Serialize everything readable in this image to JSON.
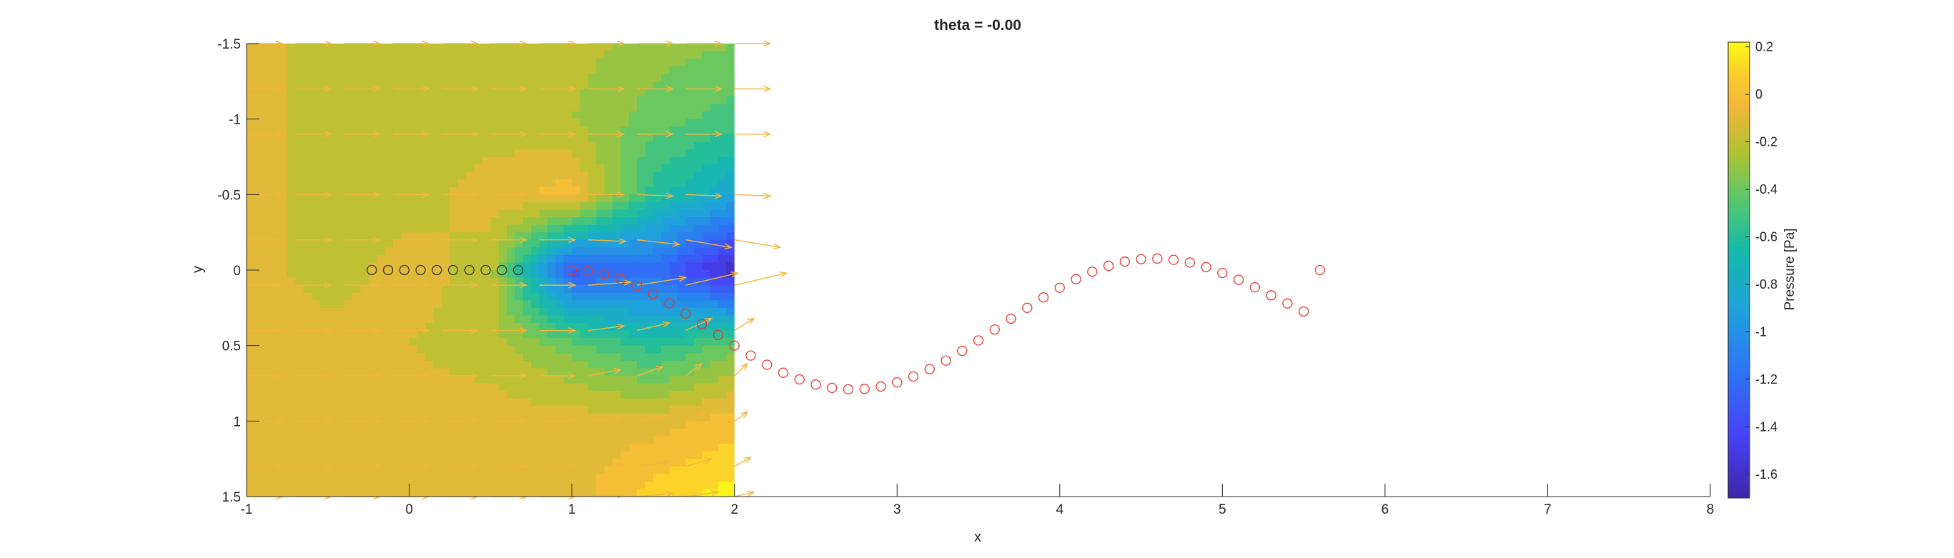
{
  "chart_data": {
    "type": "contour",
    "title": "theta = -0.00",
    "xlabel": "x",
    "ylabel": "y",
    "xlim": [
      -1,
      8
    ],
    "ylim": [
      -1.5,
      1.5
    ],
    "y_reversed": true,
    "x_ticks": [
      -1,
      0,
      1,
      2,
      3,
      4,
      5,
      6,
      7,
      8
    ],
    "x_tick_labels": [
      "-1",
      "0",
      "1",
      "2",
      "3",
      "4",
      "5",
      "6",
      "7",
      "8"
    ],
    "y_ticks": [
      -1.5,
      -1,
      -0.5,
      0,
      0.5,
      1,
      1.5
    ],
    "y_tick_labels": [
      "-1.5",
      "-1",
      "-0.5",
      "0",
      "0.5",
      "1",
      "1.5"
    ],
    "grid": false,
    "field_domain": {
      "x": [
        -1,
        2
      ],
      "y": [
        -1.5,
        1.5
      ]
    },
    "colorbar": {
      "label": "Pressure [Pa]",
      "limits": [
        -1.7,
        0.22
      ],
      "ticks": [
        0.2,
        0,
        -0.2,
        -0.4,
        -0.6,
        -0.8,
        -1,
        -1.2,
        -1.4,
        -1.6
      ],
      "tick_labels": [
        "0.2",
        "0",
        "-0.2",
        "-0.4",
        "-0.6",
        "-0.8",
        "-1",
        "-1.2",
        "-1.4",
        "-1.6"
      ],
      "colormap": "parula"
    },
    "pressure_field": {
      "x": [
        -1.0,
        -0.5,
        0.0,
        0.5,
        1.0,
        1.5,
        2.0
      ],
      "y": [
        -1.5,
        -1.0,
        -0.5,
        0.0,
        0.5,
        1.0,
        1.5
      ],
      "p": [
        [
          -0.1,
          -0.2,
          -0.2,
          -0.2,
          -0.2,
          -0.3,
          -0.35
        ],
        [
          -0.1,
          -0.2,
          -0.2,
          -0.2,
          -0.25,
          -0.4,
          -0.5
        ],
        [
          -0.1,
          -0.2,
          -0.2,
          -0.1,
          0.0,
          -0.6,
          -0.85
        ],
        [
          -0.1,
          -0.2,
          -0.1,
          -0.2,
          -1.3,
          -1.2,
          -1.65
        ],
        [
          -0.1,
          -0.1,
          -0.15,
          -0.2,
          -0.4,
          -0.6,
          -0.4
        ],
        [
          -0.1,
          -0.1,
          -0.1,
          -0.1,
          -0.1,
          -0.1,
          0.0
        ],
        [
          -0.1,
          -0.1,
          -0.1,
          -0.1,
          -0.1,
          0.1,
          0.2
        ]
      ]
    },
    "velocity_field": {
      "x": [
        -1.0,
        -0.7,
        -0.4,
        -0.1,
        0.2,
        0.5,
        0.8,
        1.1,
        1.4,
        1.7,
        2.0
      ],
      "y": [
        -1.5,
        -1.2,
        -0.9,
        -0.5,
        -0.2,
        0.1,
        0.4,
        0.7,
        1.0,
        1.3,
        1.5
      ],
      "u": [
        [
          0.22,
          0.22,
          0.22,
          0.22,
          0.22,
          0.22,
          0.22,
          0.22,
          0.22,
          0.22,
          0.22
        ],
        [
          0.22,
          0.22,
          0.22,
          0.22,
          0.22,
          0.22,
          0.22,
          0.22,
          0.22,
          0.22,
          0.22
        ],
        [
          0.22,
          0.22,
          0.22,
          0.22,
          0.22,
          0.22,
          0.22,
          0.22,
          0.22,
          0.22,
          0.22
        ],
        [
          0.22,
          0.22,
          0.22,
          0.22,
          0.22,
          0.22,
          0.22,
          0.22,
          0.22,
          0.22,
          0.22
        ],
        [
          0.22,
          0.22,
          0.22,
          0.22,
          0.22,
          0.22,
          0.22,
          0.23,
          0.26,
          0.28,
          0.28
        ],
        [
          0.22,
          0.22,
          0.22,
          0.22,
          0.22,
          0.22,
          0.22,
          0.26,
          0.3,
          0.32,
          0.32
        ],
        [
          0.22,
          0.22,
          0.22,
          0.22,
          0.22,
          0.22,
          0.22,
          0.22,
          0.2,
          0.16,
          0.12
        ],
        [
          0.22,
          0.22,
          0.22,
          0.22,
          0.22,
          0.22,
          0.22,
          0.2,
          0.16,
          0.1,
          0.08
        ],
        [
          0.22,
          0.22,
          0.22,
          0.22,
          0.22,
          0.22,
          0.22,
          0.21,
          0.18,
          0.12,
          0.08
        ],
        [
          0.22,
          0.22,
          0.22,
          0.22,
          0.22,
          0.22,
          0.22,
          0.22,
          0.2,
          0.16,
          0.1
        ],
        [
          0.22,
          0.22,
          0.22,
          0.22,
          0.22,
          0.22,
          0.22,
          0.22,
          0.22,
          0.2,
          0.12
        ]
      ],
      "v": [
        [
          0,
          0,
          0,
          0,
          0,
          0,
          0,
          0,
          0,
          0,
          0
        ],
        [
          0,
          0,
          0,
          0,
          0,
          0,
          0,
          0,
          0,
          0,
          0
        ],
        [
          0,
          0,
          0,
          0,
          0,
          0,
          0,
          0,
          0,
          0,
          0
        ],
        [
          0,
          0,
          0,
          0,
          0,
          0,
          0,
          0,
          0.01,
          0.01,
          0.01
        ],
        [
          0,
          0,
          0,
          0,
          0,
          0,
          0,
          0.01,
          0.03,
          0.05,
          0.05
        ],
        [
          0,
          0,
          0,
          0,
          0,
          0,
          0,
          -0.02,
          -0.05,
          -0.08,
          -0.08
        ],
        [
          0,
          0,
          0,
          0,
          0,
          0,
          0,
          -0.03,
          -0.05,
          -0.08,
          -0.08
        ],
        [
          0,
          0,
          0,
          0,
          0,
          0,
          0,
          -0.04,
          -0.06,
          -0.08,
          -0.08
        ],
        [
          0,
          0,
          0,
          0,
          0,
          0,
          0,
          -0.02,
          -0.04,
          -0.06,
          -0.06
        ],
        [
          0,
          0,
          0,
          0,
          0,
          0,
          0,
          -0.01,
          -0.03,
          -0.05,
          -0.06
        ],
        [
          0,
          0,
          0,
          0,
          0,
          0,
          0,
          -0.01,
          -0.02,
          -0.03,
          -0.03
        ]
      ],
      "color": "#f2b63f"
    },
    "series": [
      {
        "marker": "circle",
        "color": "#333333",
        "x": [
          -0.23,
          -0.13,
          -0.03,
          0.07,
          0.17,
          0.27,
          0.37,
          0.47,
          0.57,
          0.67
        ],
        "y": [
          0.0,
          0.0,
          0.0,
          0.0,
          0.0,
          0.0,
          0.0,
          0.0,
          0.0,
          0.0
        ]
      },
      {
        "marker": "circle",
        "color": "#e03c31",
        "x": [
          1.0,
          1.1,
          1.2,
          1.3,
          1.4,
          1.5,
          1.6,
          1.7,
          1.8,
          1.9,
          2.0,
          2.1,
          2.2,
          2.3,
          2.4,
          2.5,
          2.6,
          2.7,
          2.8,
          2.9,
          3.0,
          3.1,
          3.2,
          3.3,
          3.4,
          3.5,
          3.6,
          3.7,
          3.8,
          3.9,
          4.0,
          4.1,
          4.2,
          4.3,
          4.4,
          4.5,
          4.6,
          4.7,
          4.8,
          4.9,
          5.0,
          5.1,
          5.2,
          5.3,
          5.4,
          5.5,
          5.6
        ],
        "y": [
          0.0,
          0.007,
          0.027,
          0.06,
          0.104,
          0.158,
          0.22,
          0.288,
          0.358,
          0.43,
          0.5,
          0.566,
          0.627,
          0.68,
          0.724,
          0.758,
          0.78,
          0.79,
          0.787,
          0.771,
          0.744,
          0.705,
          0.656,
          0.599,
          0.535,
          0.466,
          0.394,
          0.322,
          0.25,
          0.181,
          0.117,
          0.06,
          0.011,
          -0.028,
          -0.056,
          -0.072,
          -0.076,
          -0.068,
          -0.05,
          -0.02,
          0.019,
          0.064,
          0.114,
          0.167,
          0.221,
          0.274,
          0.0
        ]
      }
    ]
  }
}
